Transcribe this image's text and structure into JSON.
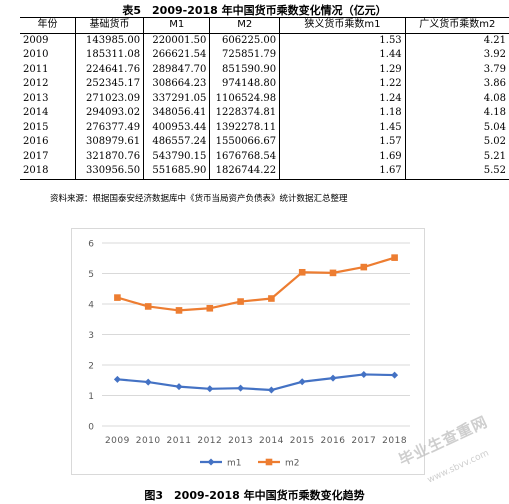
{
  "table": {
    "title": "表5　2009-2018 年中国货币乘数变化情况（亿元）",
    "headers": [
      "年份",
      "基础货币",
      "M1",
      "M2",
      "狭义货币乘数m1",
      "广义货币乘数m2"
    ],
    "rows": [
      [
        "2009",
        "143985.00",
        "220001.50",
        "606225.00",
        "1.53",
        "4.21"
      ],
      [
        "2010",
        "185311.08",
        "266621.54",
        "725851.79",
        "1.44",
        "3.92"
      ],
      [
        "2011",
        "224641.76",
        "289847.70",
        "851590.90",
        "1.29",
        "3.79"
      ],
      [
        "2012",
        "252345.17",
        "308664.23",
        "974148.80",
        "1.22",
        "3.86"
      ],
      [
        "2013",
        "271023.09",
        "337291.05",
        "1106524.98",
        "1.24",
        "4.08"
      ],
      [
        "2014",
        "294093.02",
        "348056.41",
        "1228374.81",
        "1.18",
        "4.18"
      ],
      [
        "2015",
        "276377.49",
        "400953.44",
        "1392278.11",
        "1.45",
        "5.04"
      ],
      [
        "2016",
        "308979.61",
        "486557.24",
        "1550066.67",
        "1.57",
        "5.02"
      ],
      [
        "2017",
        "321870.76",
        "543790.15",
        "1676768.54",
        "1.69",
        "5.21"
      ],
      [
        "2018",
        "330956.50",
        "551685.90",
        "1826744.22",
        "1.67",
        "5.52"
      ]
    ]
  },
  "source_note": "资料来源：根据国泰安经济数据库中《货币当局资产负债表》统计数据汇总整理",
  "figure_caption": "图3　2009-2018 年中国货币乘数变化趋势",
  "watermark": {
    "text": "毕业生查重网",
    "url": "www.sbvv.com"
  },
  "chart_data": {
    "type": "line",
    "title": "",
    "xlabel": "",
    "ylabel": "",
    "x": [
      "2009",
      "2010",
      "2011",
      "2012",
      "2013",
      "2014",
      "2015",
      "2016",
      "2017",
      "2018"
    ],
    "ylim": [
      0,
      6
    ],
    "yticks": [
      "0",
      "1",
      "2",
      "3",
      "4",
      "5",
      "6"
    ],
    "grid": true,
    "legend_position": "bottom",
    "series": [
      {
        "name": "m1",
        "color": "#4472c4",
        "marker": "diamond",
        "values": [
          1.53,
          1.44,
          1.29,
          1.22,
          1.24,
          1.18,
          1.45,
          1.57,
          1.69,
          1.67
        ]
      },
      {
        "name": "m2",
        "color": "#ed7d31",
        "marker": "square",
        "values": [
          4.21,
          3.92,
          3.79,
          3.86,
          4.08,
          4.18,
          5.04,
          5.02,
          5.21,
          5.52
        ]
      }
    ]
  }
}
